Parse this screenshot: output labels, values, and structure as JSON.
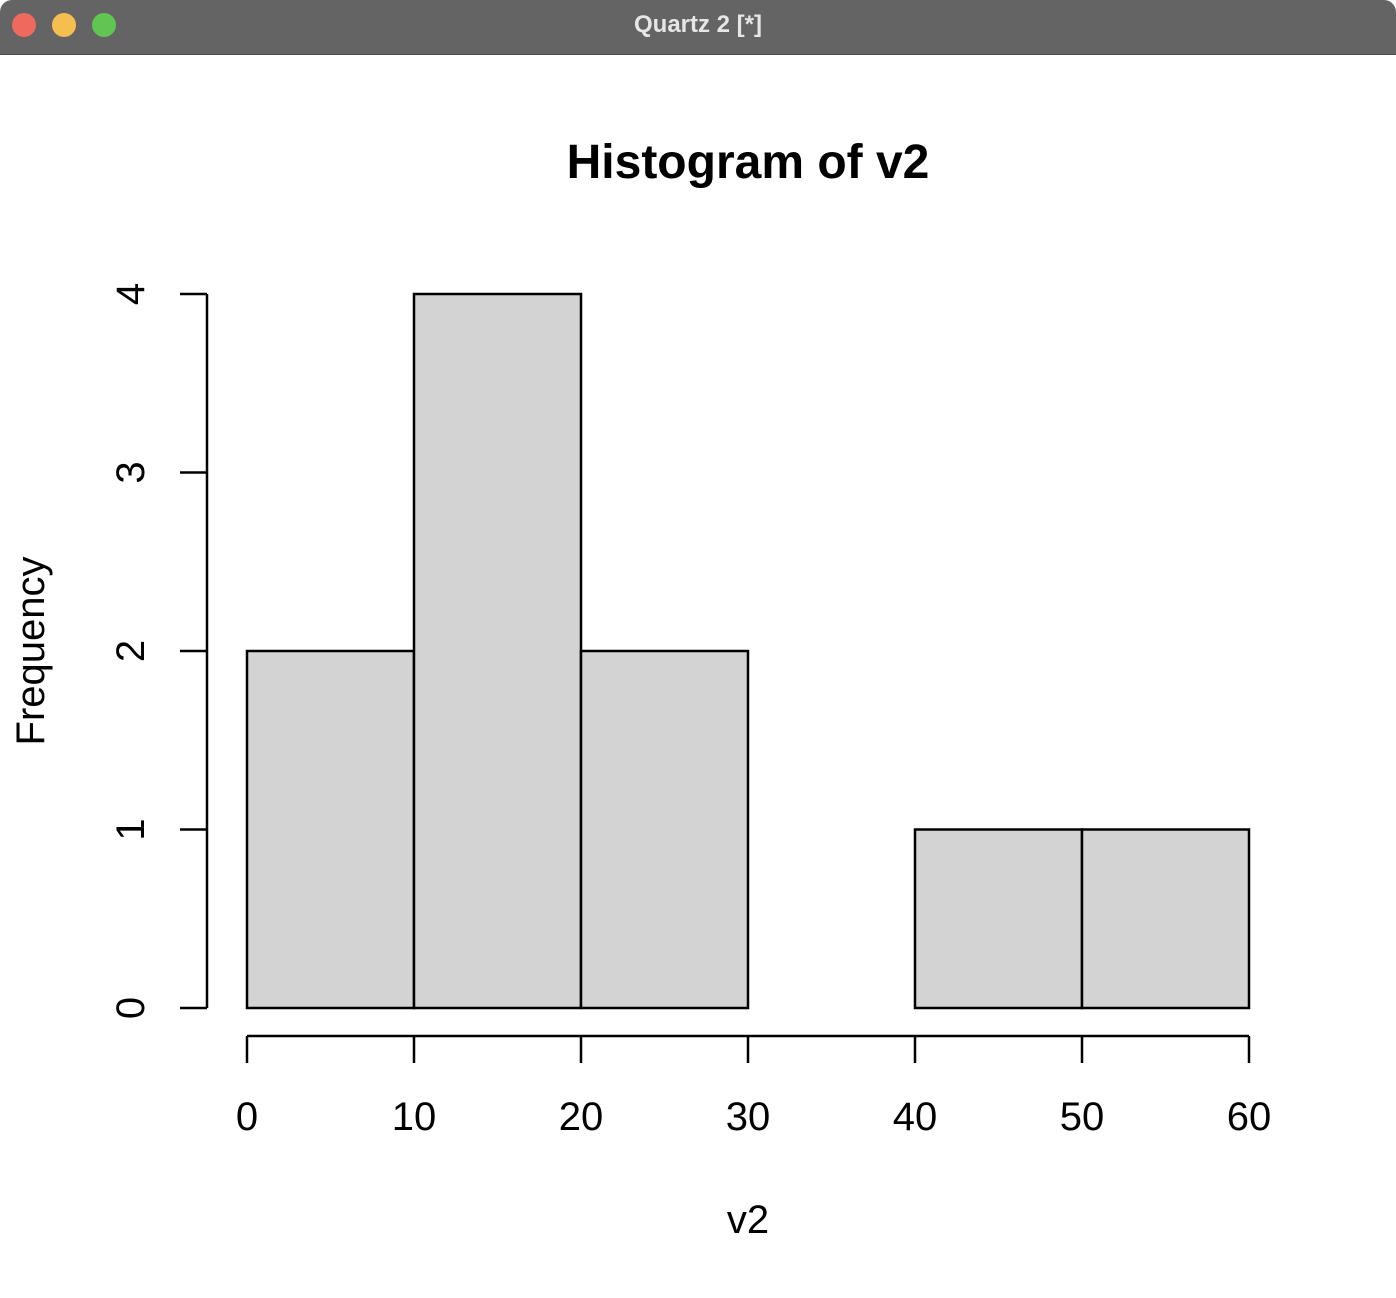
{
  "window": {
    "title": "Quartz 2 [*]"
  },
  "colors": {
    "bar_fill": "#d3d3d3",
    "bar_stroke": "#000000",
    "titlebar": "#636463"
  },
  "chart_data": {
    "type": "bar",
    "title": "Histogram of v2",
    "xlabel": "v2",
    "ylabel": "Frequency",
    "bins": [
      {
        "start": 0,
        "end": 10,
        "count": 2
      },
      {
        "start": 10,
        "end": 20,
        "count": 4
      },
      {
        "start": 20,
        "end": 30,
        "count": 2
      },
      {
        "start": 30,
        "end": 40,
        "count": 0
      },
      {
        "start": 40,
        "end": 50,
        "count": 1
      },
      {
        "start": 50,
        "end": 60,
        "count": 1
      }
    ],
    "xticks": [
      "0",
      "10",
      "20",
      "30",
      "40",
      "50",
      "60"
    ],
    "yticks": [
      "0",
      "1",
      "2",
      "3",
      "4"
    ],
    "xlim": [
      0,
      60
    ],
    "ylim": [
      0,
      4
    ],
    "grid": false,
    "legend": "none"
  }
}
